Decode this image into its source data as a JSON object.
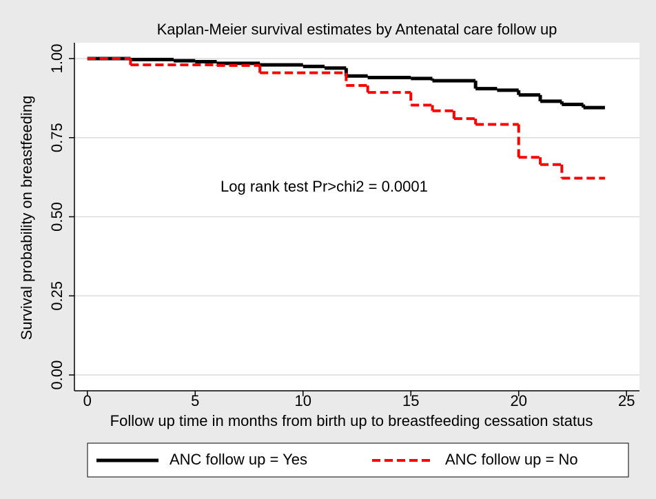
{
  "chart_data": {
    "type": "step",
    "title": "Kaplan-Meier survival estimates by Antenatal care follow up",
    "x_label": "Follow up time in months from birth up to breastfeeding cessation status",
    "y_label": "Survival probability on breastfeeding",
    "annotation": "Log rank test  Pr>chi2 =  0.0001",
    "xlim": [
      -0.6,
      25.6
    ],
    "ylim": [
      -0.05,
      1.05
    ],
    "xticks": [
      0,
      5,
      10,
      15,
      20,
      25
    ],
    "yticks": [
      {
        "value": 0,
        "label": "0.00"
      },
      {
        "value": 0.25,
        "label": "0.25"
      },
      {
        "value": 0.5,
        "label": "0.50"
      },
      {
        "value": 0.75,
        "label": "0.75"
      },
      {
        "value": 1,
        "label": "1.00"
      }
    ],
    "grid": true,
    "legend": "bottom",
    "series": [
      {
        "name": "ANC follow up = Yes",
        "color": "#000000",
        "dash": false,
        "x": [
          0,
          2,
          4,
          5,
          6,
          8,
          10,
          11,
          12,
          13,
          15,
          16,
          18,
          19,
          20,
          21,
          22,
          23,
          24
        ],
        "values": [
          1.0,
          0.997,
          0.993,
          0.99,
          0.985,
          0.98,
          0.975,
          0.97,
          0.945,
          0.94,
          0.937,
          0.93,
          0.905,
          0.9,
          0.885,
          0.865,
          0.855,
          0.845,
          0.845
        ]
      },
      {
        "name": "ANC follow up = No",
        "color": "#ff0000",
        "dash": true,
        "x": [
          0,
          2,
          6,
          8,
          12,
          13,
          15,
          16,
          17,
          18,
          20,
          21,
          22,
          24
        ],
        "values": [
          1.0,
          0.98,
          0.978,
          0.955,
          0.915,
          0.893,
          0.853,
          0.835,
          0.81,
          0.792,
          0.688,
          0.665,
          0.622,
          0.622
        ]
      }
    ]
  }
}
